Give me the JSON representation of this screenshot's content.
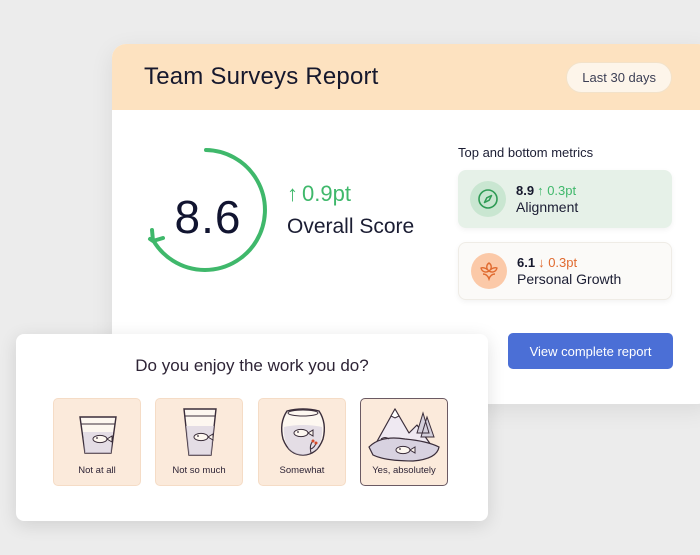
{
  "report": {
    "title": "Team Surveys Report",
    "range": "Last 30 days",
    "score": "8.6",
    "score_delta": "0.9pt",
    "score_label": "Overall Score",
    "score_up_arrow": "↑",
    "metrics_title": "Top and bottom metrics",
    "metrics": [
      {
        "value": "8.9",
        "arrow": "↑",
        "change": "0.3pt",
        "label": "Alignment",
        "icon": "compass-icon",
        "color": "#3fb86b"
      },
      {
        "value": "6.1",
        "arrow": "↓",
        "change": "0.3pt",
        "label": "Personal Growth",
        "icon": "flower-icon",
        "color": "#e06a2f"
      }
    ],
    "cta": "View complete report"
  },
  "survey": {
    "question": "Do you enjoy the work you do?",
    "options": [
      {
        "label": "Not at all",
        "icon": "small-cup-fish-icon",
        "selected": false
      },
      {
        "label": "Not so much",
        "icon": "tall-glass-fish-icon",
        "selected": false
      },
      {
        "label": "Somewhat",
        "icon": "fishbowl-icon",
        "selected": false
      },
      {
        "label": "Yes, absolutely",
        "icon": "lake-mountain-fish-icon",
        "selected": true
      }
    ]
  },
  "colors": {
    "accent": "#4b6fd6",
    "header": "#fde2c0",
    "positive": "#3fb86b",
    "negative": "#e06a2f"
  }
}
